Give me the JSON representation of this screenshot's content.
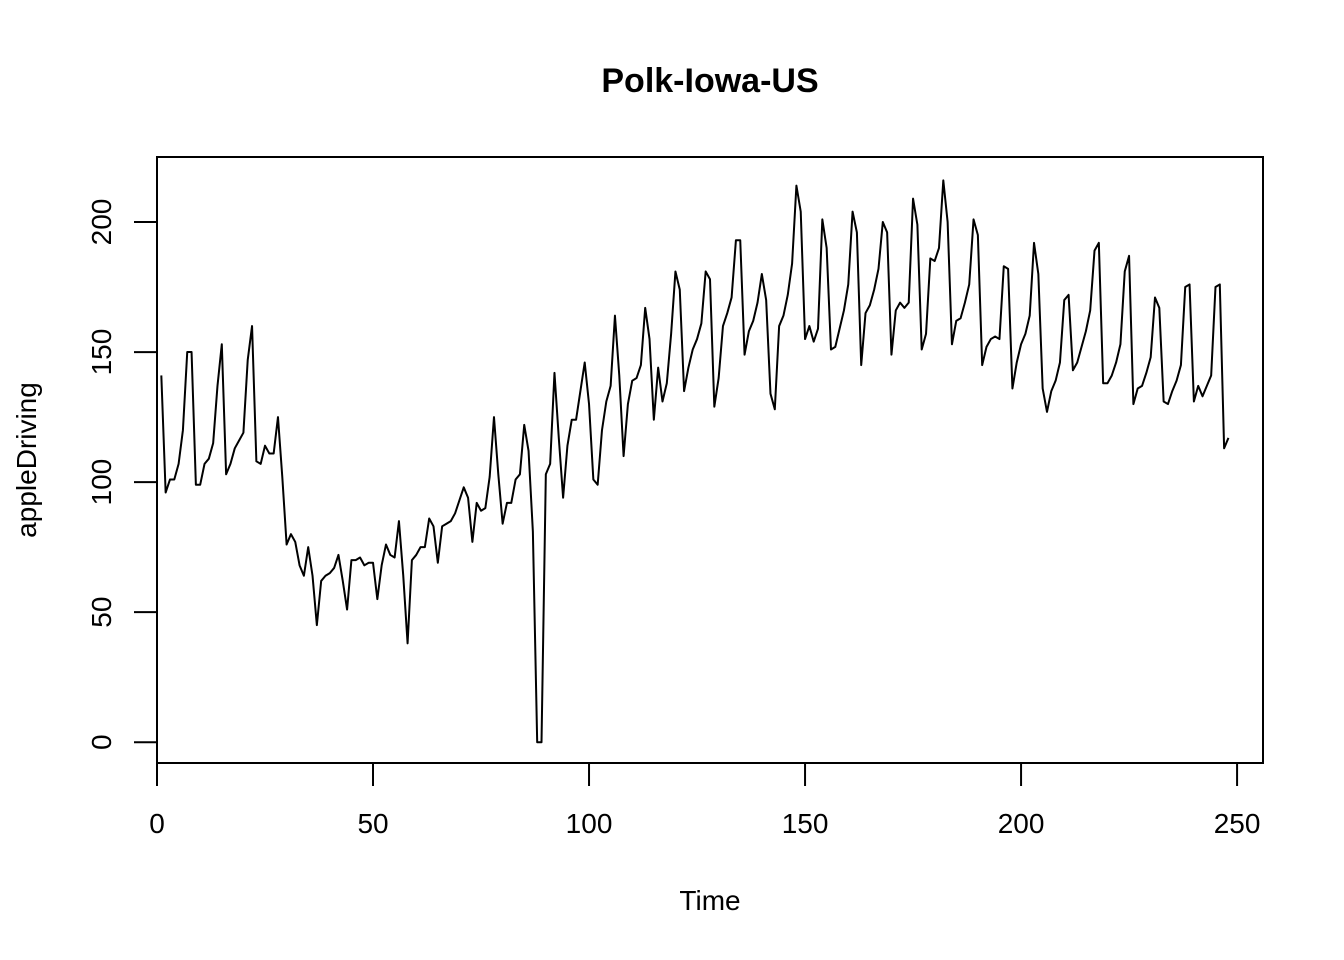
{
  "chart_data": {
    "type": "line",
    "title": "Polk-Iowa-US",
    "xlabel": "Time",
    "ylabel": "appleDriving",
    "xlim": [
      0,
      256
    ],
    "ylim": [
      -8,
      225
    ],
    "x_ticks": [
      0,
      50,
      100,
      150,
      200,
      250
    ],
    "y_ticks": [
      0,
      50,
      100,
      150,
      200
    ],
    "grid": false,
    "colors": {
      "line": "#000000",
      "axes": "#000000",
      "background": "#ffffff"
    },
    "series": [
      {
        "x": [
          1,
          2,
          3,
          4,
          5,
          6,
          7,
          8,
          9,
          10,
          11,
          12,
          13,
          14,
          15,
          16,
          17,
          18,
          19,
          20,
          21,
          22,
          23,
          24,
          25,
          26,
          27,
          28,
          29,
          30,
          31,
          32,
          33,
          34,
          35,
          36,
          37,
          38,
          39,
          40,
          41,
          42,
          43,
          44,
          45,
          46,
          47,
          48,
          49,
          50,
          51,
          52,
          53,
          54,
          55,
          56,
          57,
          58,
          59,
          60,
          61,
          62,
          63,
          64,
          65,
          66,
          67,
          68,
          69,
          70,
          71,
          72,
          73,
          74,
          75,
          76,
          77,
          78,
          79,
          80,
          81,
          82,
          83,
          84,
          85,
          86,
          87,
          88,
          89,
          90,
          91,
          92,
          93,
          94,
          95,
          96,
          97,
          98,
          99,
          100,
          101,
          102,
          103,
          104,
          105,
          106,
          107,
          108,
          109,
          110,
          111,
          112,
          113,
          114,
          115,
          116,
          117,
          118,
          119,
          120,
          121,
          122,
          123,
          124,
          125,
          126,
          127,
          128,
          129,
          130,
          131,
          132,
          133,
          134,
          135,
          136,
          137,
          138,
          139,
          140,
          141,
          142,
          143,
          144,
          145,
          146,
          147,
          148,
          149,
          150,
          151,
          152,
          153,
          154,
          155,
          156,
          157,
          158,
          159,
          160,
          161,
          162,
          163,
          164,
          165,
          166,
          167,
          168,
          169,
          170,
          171,
          172,
          173,
          174,
          175,
          176,
          177,
          178,
          179,
          180,
          181,
          182,
          183,
          184,
          185,
          186,
          187,
          188,
          189,
          190,
          191,
          192,
          193,
          194,
          195,
          196,
          197,
          198,
          199,
          200,
          201,
          202,
          203,
          204,
          205,
          206,
          207,
          208,
          209,
          210,
          211,
          212,
          213,
          214,
          215,
          216,
          217,
          218,
          219,
          220,
          221,
          222,
          223,
          224,
          225,
          226,
          227,
          228,
          229,
          230,
          231,
          232,
          233,
          234,
          235,
          236,
          237,
          238,
          239,
          240,
          241,
          242,
          243,
          244,
          245,
          246,
          247,
          248
        ],
        "y": [
          141,
          96,
          101,
          101,
          107,
          120,
          150,
          150,
          99,
          99,
          107,
          109,
          115,
          137,
          153,
          103,
          107,
          113,
          116,
          119,
          147,
          160,
          108,
          107,
          114,
          111,
          111,
          125,
          102,
          76,
          80,
          77,
          68,
          64,
          75,
          64,
          45,
          62,
          64,
          65,
          67,
          72,
          62,
          51,
          70,
          70,
          71,
          68,
          69,
          69,
          55,
          68,
          76,
          72,
          71,
          85,
          64,
          38,
          70,
          72,
          75,
          75,
          86,
          83,
          69,
          83,
          84,
          85,
          88,
          93,
          98,
          94,
          77,
          92,
          89,
          90,
          102,
          125,
          103,
          84,
          92,
          92,
          101,
          103,
          122,
          112,
          81,
          0,
          0,
          103,
          107,
          142,
          117,
          94,
          114,
          124,
          124,
          135,
          146,
          130,
          101,
          99,
          120,
          131,
          137,
          164,
          141,
          110,
          130,
          139,
          140,
          145,
          167,
          155,
          124,
          144,
          131,
          138,
          157,
          181,
          174,
          135,
          144,
          151,
          155,
          161,
          181,
          178,
          129,
          140,
          160,
          165,
          171,
          193,
          193,
          149,
          158,
          162,
          169,
          180,
          170,
          134,
          128,
          160,
          164,
          172,
          184,
          214,
          204,
          155,
          160,
          154,
          159,
          201,
          190,
          151,
          152,
          159,
          166,
          176,
          204,
          196,
          145,
          165,
          168,
          174,
          182,
          200,
          196,
          149,
          166,
          169,
          167,
          169,
          209,
          199,
          151,
          157,
          186,
          185,
          190,
          216,
          200,
          153,
          162,
          163,
          169,
          176,
          201,
          195,
          145,
          152,
          155,
          156,
          155,
          183,
          182,
          136,
          146,
          153,
          157,
          164,
          192,
          180,
          136,
          127,
          135,
          139,
          146,
          170,
          172,
          143,
          146,
          152,
          158,
          166,
          189,
          192,
          138,
          138,
          141,
          146,
          153,
          181,
          187,
          130,
          136,
          137,
          142,
          148,
          171,
          167,
          131,
          130,
          135,
          139,
          145,
          175,
          176,
          131,
          137,
          133,
          137,
          141,
          175,
          176,
          113,
          117
        ]
      }
    ]
  }
}
